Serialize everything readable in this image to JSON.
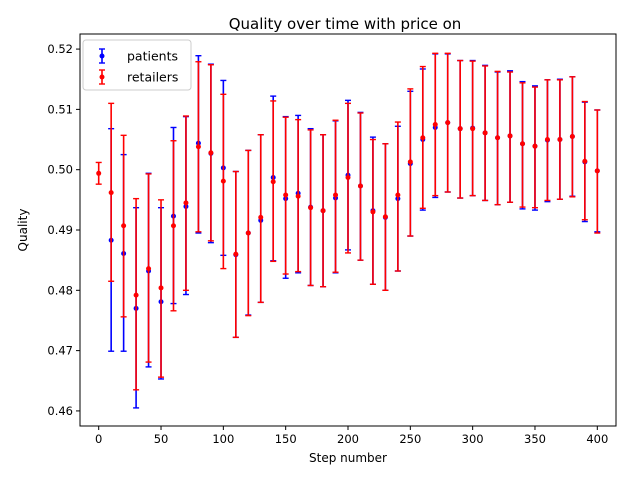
{
  "chart_data": {
    "type": "scatter",
    "title": "Quality over time with price on",
    "xlabel": "Step number",
    "ylabel": "Quality",
    "xlim": [
      -15,
      415
    ],
    "ylim": [
      0.4575,
      0.5225
    ],
    "xticks": [
      0,
      50,
      100,
      150,
      200,
      250,
      300,
      350,
      400
    ],
    "yticks": [
      0.46,
      0.47,
      0.48,
      0.49,
      0.5,
      0.51,
      0.52
    ],
    "xtick_labels": [
      "0",
      "50",
      "100",
      "150",
      "200",
      "250",
      "300",
      "350",
      "400"
    ],
    "ytick_labels": [
      "0.46",
      "0.47",
      "0.48",
      "0.49",
      "0.50",
      "0.51",
      "0.52"
    ],
    "grid": false,
    "legend_position": "top-left",
    "error_bars": true,
    "series": [
      {
        "name": "patients",
        "color": "#0000ff",
        "x": [
          10,
          20,
          30,
          40,
          50,
          60,
          70,
          80,
          90,
          100,
          110,
          120,
          130,
          140,
          150,
          160,
          170,
          180,
          190,
          200,
          210,
          220,
          230,
          240,
          250,
          260,
          270,
          280,
          290,
          300,
          310,
          320,
          330,
          340,
          350,
          360,
          370,
          380,
          390,
          400
        ],
        "y": [
          0.4883,
          0.4861,
          0.477,
          0.4832,
          0.4781,
          0.4923,
          0.4939,
          0.5044,
          0.5027,
          0.5003,
          0.4859,
          0.4895,
          0.4916,
          0.4987,
          0.4952,
          0.4961,
          0.4938,
          0.4932,
          0.4953,
          0.4991,
          0.4973,
          0.4932,
          0.4921,
          0.4952,
          0.501,
          0.505,
          0.507,
          0.5078,
          0.5068,
          0.5069,
          0.5061,
          0.5053,
          0.5056,
          0.5043,
          0.5039,
          0.5049,
          0.505,
          0.5055,
          0.5013,
          0.4998
        ],
        "err_low": [
          0.4699,
          0.4699,
          0.4605,
          0.4673,
          0.4653,
          0.4778,
          0.4793,
          0.4895,
          0.4879,
          0.4858,
          0.4722,
          0.4759,
          0.478,
          0.4849,
          0.482,
          0.4829,
          0.4808,
          0.4806,
          0.4829,
          0.4867,
          0.485,
          0.481,
          0.48,
          0.4832,
          0.489,
          0.4933,
          0.4954,
          0.4963,
          0.4953,
          0.4957,
          0.4949,
          0.4942,
          0.4946,
          0.4935,
          0.4933,
          0.4947,
          0.4951,
          0.4956,
          0.4914,
          0.4897
        ],
        "err_high": [
          0.5068,
          0.5025,
          0.4937,
          0.4994,
          0.4937,
          0.507,
          0.5088,
          0.5189,
          0.5175,
          0.5148,
          0.4997,
          0.5032,
          0.5058,
          0.5122,
          0.5088,
          0.509,
          0.5068,
          0.5058,
          0.5081,
          0.5115,
          0.5095,
          0.5054,
          0.5043,
          0.5072,
          0.513,
          0.5167,
          0.5192,
          0.5192,
          0.5181,
          0.5181,
          0.5173,
          0.5162,
          0.5164,
          0.5146,
          0.5139,
          0.5149,
          0.515,
          0.5154,
          0.5112,
          0.5099
        ]
      },
      {
        "name": "retailers",
        "color": "#ff0000",
        "x": [
          0,
          10,
          20,
          30,
          40,
          50,
          60,
          70,
          80,
          90,
          100,
          110,
          120,
          130,
          140,
          150,
          160,
          170,
          180,
          190,
          200,
          210,
          220,
          230,
          240,
          250,
          260,
          270,
          280,
          290,
          300,
          310,
          320,
          330,
          340,
          350,
          360,
          370,
          380,
          390,
          400
        ],
        "y": [
          0.4994,
          0.4962,
          0.4907,
          0.4792,
          0.4836,
          0.4804,
          0.4907,
          0.4945,
          0.5038,
          0.5028,
          0.4981,
          0.486,
          0.4895,
          0.4921,
          0.498,
          0.4958,
          0.4956,
          0.4937,
          0.4932,
          0.4958,
          0.4987,
          0.4973,
          0.493,
          0.4922,
          0.4958,
          0.5013,
          0.5053,
          0.5075,
          0.5078,
          0.5068,
          0.5068,
          0.5061,
          0.5053,
          0.5056,
          0.5043,
          0.5039,
          0.505,
          0.505,
          0.5055,
          0.5014,
          0.4998
        ],
        "err_low": [
          0.4976,
          0.4815,
          0.4756,
          0.4635,
          0.4681,
          0.4656,
          0.4766,
          0.48,
          0.4897,
          0.4882,
          0.4836,
          0.4722,
          0.4758,
          0.478,
          0.4848,
          0.4827,
          0.4831,
          0.4808,
          0.4806,
          0.483,
          0.4862,
          0.485,
          0.481,
          0.48,
          0.4832,
          0.489,
          0.4936,
          0.4957,
          0.4963,
          0.4953,
          0.4957,
          0.4949,
          0.4942,
          0.4946,
          0.4938,
          0.4937,
          0.4949,
          0.4951,
          0.4955,
          0.4917,
          0.4895
        ],
        "err_high": [
          0.5012,
          0.511,
          0.5057,
          0.4952,
          0.4993,
          0.495,
          0.5048,
          0.5089,
          0.5179,
          0.5174,
          0.5125,
          0.4997,
          0.5032,
          0.5058,
          0.5114,
          0.5087,
          0.5083,
          0.5066,
          0.5058,
          0.5082,
          0.511,
          0.5094,
          0.505,
          0.5043,
          0.5079,
          0.5134,
          0.5171,
          0.5193,
          0.5193,
          0.5181,
          0.518,
          0.5172,
          0.5163,
          0.5162,
          0.5144,
          0.5137,
          0.5149,
          0.5149,
          0.5154,
          0.5113,
          0.5099
        ]
      }
    ]
  }
}
